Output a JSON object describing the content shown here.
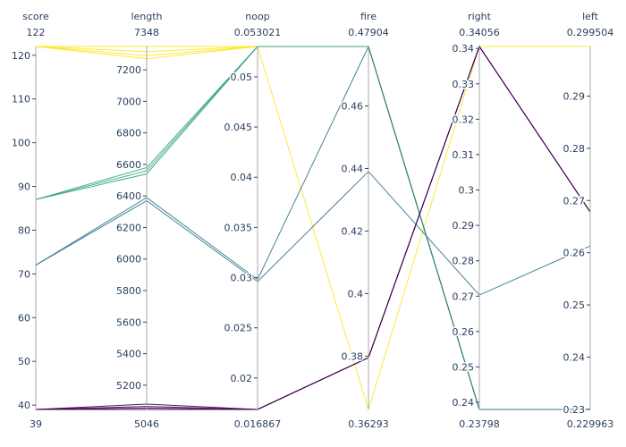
{
  "chart_data": {
    "type": "parallel_coordinates",
    "dimensions": [
      {
        "name": "score",
        "range": [
          39,
          122
        ],
        "range_min_label": "39",
        "range_max_label": "122",
        "ticks": [
          {
            "value": 40,
            "label": "40"
          },
          {
            "value": 50,
            "label": "50"
          },
          {
            "value": 60,
            "label": "60"
          },
          {
            "value": 70,
            "label": "70"
          },
          {
            "value": 80,
            "label": "80"
          },
          {
            "value": 90,
            "label": "90"
          },
          {
            "value": 100,
            "label": "100"
          },
          {
            "value": 110,
            "label": "110"
          },
          {
            "value": 120,
            "label": "120"
          }
        ]
      },
      {
        "name": "length",
        "range": [
          5046,
          7348
        ],
        "range_min_label": "5046",
        "range_max_label": "7348",
        "ticks": [
          {
            "value": 5200,
            "label": "5200"
          },
          {
            "value": 5400,
            "label": "5400"
          },
          {
            "value": 5600,
            "label": "5600"
          },
          {
            "value": 5800,
            "label": "5800"
          },
          {
            "value": 6000,
            "label": "6000"
          },
          {
            "value": 6200,
            "label": "6200"
          },
          {
            "value": 6400,
            "label": "6400"
          },
          {
            "value": 6600,
            "label": "6600"
          },
          {
            "value": 6800,
            "label": "6800"
          },
          {
            "value": 7000,
            "label": "7000"
          },
          {
            "value": 7200,
            "label": "7200"
          }
        ]
      },
      {
        "name": "noop",
        "range": [
          0.016867,
          0.053021
        ],
        "range_min_label": "0.016867",
        "range_max_label": "0.053021",
        "ticks": [
          {
            "value": 0.02,
            "label": "0.02"
          },
          {
            "value": 0.025,
            "label": "0.025"
          },
          {
            "value": 0.03,
            "label": "0.03"
          },
          {
            "value": 0.035,
            "label": "0.035"
          },
          {
            "value": 0.04,
            "label": "0.04"
          },
          {
            "value": 0.045,
            "label": "0.045"
          },
          {
            "value": 0.05,
            "label": "0.05"
          }
        ]
      },
      {
        "name": "fire",
        "range": [
          0.36293,
          0.47904
        ],
        "range_min_label": "0.36293",
        "range_max_label": "0.47904",
        "ticks": [
          {
            "value": 0.38,
            "label": "0.38"
          },
          {
            "value": 0.4,
            "label": "0.4"
          },
          {
            "value": 0.42,
            "label": "0.42"
          },
          {
            "value": 0.44,
            "label": "0.44"
          },
          {
            "value": 0.46,
            "label": "0.46"
          }
        ]
      },
      {
        "name": "right",
        "range": [
          0.23798,
          0.34056
        ],
        "range_min_label": "0.23798",
        "range_max_label": "0.34056",
        "ticks": [
          {
            "value": 0.24,
            "label": "0.24"
          },
          {
            "value": 0.25,
            "label": "0.25"
          },
          {
            "value": 0.26,
            "label": "0.26"
          },
          {
            "value": 0.27,
            "label": "0.27"
          },
          {
            "value": 0.28,
            "label": "0.28"
          },
          {
            "value": 0.29,
            "label": "0.29"
          },
          {
            "value": 0.3,
            "label": "0.3"
          },
          {
            "value": 0.31,
            "label": "0.31"
          },
          {
            "value": 0.32,
            "label": "0.32"
          },
          {
            "value": 0.33,
            "label": "0.33"
          },
          {
            "value": 0.34,
            "label": "0.34"
          }
        ]
      },
      {
        "name": "left",
        "range": [
          0.229963,
          0.299504
        ],
        "range_min_label": "0.229963",
        "range_max_label": "0.299504",
        "ticks": [
          {
            "value": 0.23,
            "label": "0.23"
          },
          {
            "value": 0.24,
            "label": "0.24"
          },
          {
            "value": 0.25,
            "label": "0.25"
          },
          {
            "value": 0.26,
            "label": "0.26"
          },
          {
            "value": 0.27,
            "label": "0.27"
          },
          {
            "value": 0.28,
            "label": "0.28"
          },
          {
            "value": 0.29,
            "label": "0.29"
          }
        ]
      }
    ],
    "colorscale": [
      "#440154",
      "#3b528b",
      "#21918c",
      "#5ec962",
      "#fde725"
    ],
    "color_by": "score",
    "lines": [
      {
        "values": [
          122,
          7348,
          0.053021,
          0.47904,
          0.23798,
          0.229963
        ]
      },
      {
        "values": [
          122,
          7315,
          0.053021,
          0.47904,
          0.23798,
          0.229963
        ]
      },
      {
        "values": [
          122,
          7290,
          0.053021,
          0.47904,
          0.23798,
          0.229963
        ]
      },
      {
        "values": [
          122,
          7270,
          0.053021,
          0.36293,
          0.34056,
          0.299504
        ]
      },
      {
        "values": [
          87,
          6580,
          0.053021,
          0.47904,
          0.23798,
          0.229963
        ]
      },
      {
        "values": [
          87,
          6560,
          0.053021,
          0.47904,
          0.23798,
          0.229963
        ]
      },
      {
        "values": [
          87,
          6540,
          0.053021,
          0.47904,
          0.23798,
          0.229963
        ]
      },
      {
        "values": [
          72,
          6390,
          0.0298,
          0.47904,
          0.23798,
          0.229963
        ]
      },
      {
        "values": [
          72,
          6370,
          0.0296,
          0.43905,
          0.2703,
          0.2613
        ]
      },
      {
        "values": [
          39,
          5080,
          0.016867,
          0.3795,
          0.34056,
          0.2678
        ]
      },
      {
        "values": [
          39,
          5065,
          0.016867,
          0.3795,
          0.34056,
          0.2678
        ]
      },
      {
        "values": [
          39,
          5055,
          0.016867,
          0.3795,
          0.34056,
          0.2678
        ]
      },
      {
        "values": [
          39,
          5046,
          0.016867,
          0.3795,
          0.34056,
          0.2678
        ]
      }
    ]
  }
}
